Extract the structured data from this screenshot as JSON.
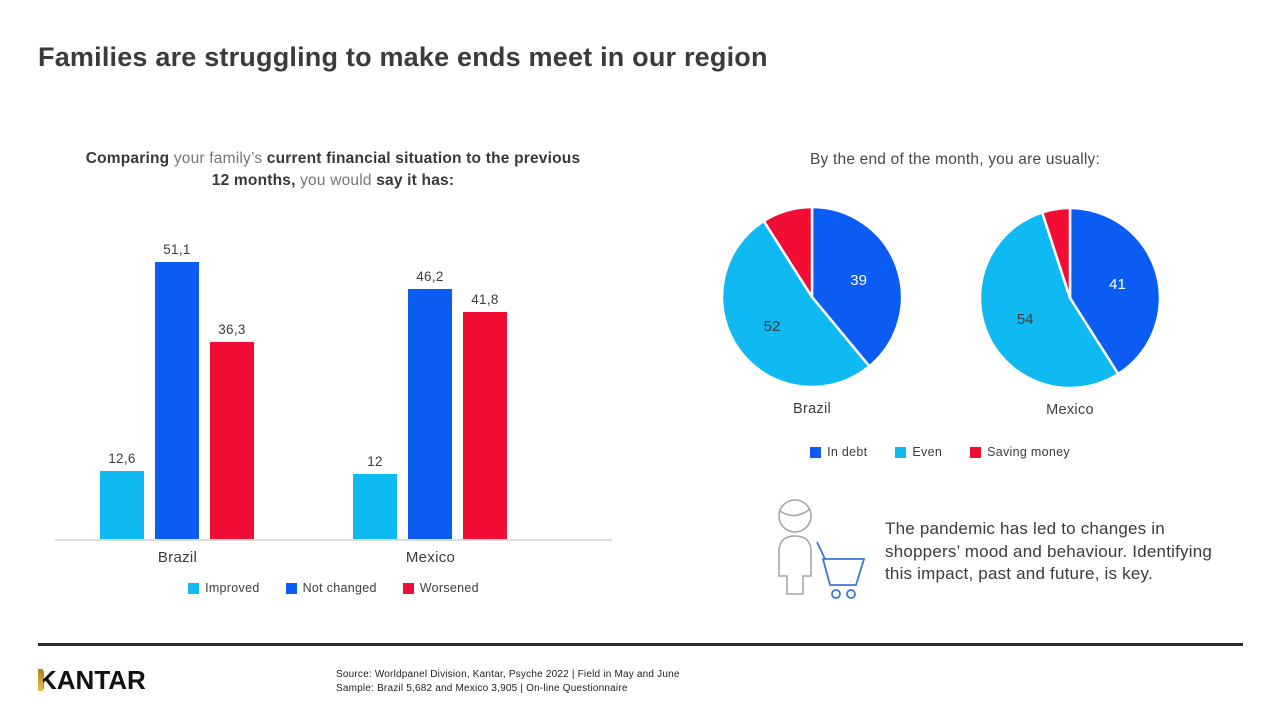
{
  "title": "Families are struggling to make ends meet in our region",
  "colors": {
    "cyan": "#0FB9F2",
    "blue": "#0B5CF2",
    "red": "#F20D35",
    "axis": "#DCDCDC",
    "text_dark": "#3C3C3C",
    "gold": "#C9A227"
  },
  "bar_section": {
    "title_segments": [
      {
        "text": "Comparing ",
        "em": true
      },
      {
        "text": "your family’s ",
        "em": false
      },
      {
        "text": "current financial situation to the previous 12 months, ",
        "em": true
      },
      {
        "text": "you would ",
        "em": false
      },
      {
        "text": "say it has:",
        "em": true
      }
    ],
    "legend": [
      {
        "label": "Improved",
        "color": "#0FB9F2"
      },
      {
        "label": "Not changed",
        "color": "#0B5CF2"
      },
      {
        "label": "Worsened",
        "color": "#F20D35"
      }
    ]
  },
  "pie_section": {
    "title": "By the end of the month, you are usually:",
    "legend": [
      {
        "label": "In debt",
        "color": "#0B5CF2"
      },
      {
        "label": "Even",
        "color": "#0FB9F2"
      },
      {
        "label": "Saving money",
        "color": "#F20D35"
      }
    ]
  },
  "insight": {
    "text": "The pandemic has led to changes in shoppers’ mood and behaviour. Identifying this impact, past and future, is key.",
    "icons": [
      "shopper-person-icon",
      "shopping-basket-icon"
    ]
  },
  "footer": {
    "logo": "KANTAR",
    "source_line1": "Source: Worldpanel Division, Kantar, Psyche 2022 | Field in May and June",
    "source_line2": "Sample: Brazil 5,682 and Mexico 3,905 | On-line Questionnaire"
  },
  "chart_data": [
    {
      "type": "bar",
      "title": "Comparing your family’s current financial situation to the previous 12 months, you would say it has:",
      "categories": [
        "Brazil",
        "Mexico"
      ],
      "series": [
        {
          "name": "Improved",
          "color": "#0FB9F2",
          "values": [
            12.6,
            12
          ],
          "labels": [
            "12,6",
            "12"
          ]
        },
        {
          "name": "Not changed",
          "color": "#0B5CF2",
          "values": [
            51.1,
            46.2
          ],
          "labels": [
            "51,1",
            "46,2"
          ]
        },
        {
          "name": "Worsened",
          "color": "#F20D35",
          "values": [
            36.3,
            41.8
          ],
          "labels": [
            "36,3",
            "41,8"
          ]
        }
      ],
      "ylim": [
        0,
        55
      ],
      "grid": false,
      "legend_position": "bottom"
    },
    {
      "type": "pie",
      "title": "Brazil",
      "slices": [
        {
          "name": "In debt",
          "value": 39,
          "label": "39",
          "color": "#0B5CF2",
          "label_color": "#FFFFFF"
        },
        {
          "name": "Even",
          "value": 52,
          "label": "52",
          "color": "#0FB9F2",
          "label_color": "#3C3C3C"
        },
        {
          "name": "Saving money",
          "value": 9,
          "label": "",
          "color": "#F20D35",
          "label_color": "#FFFFFF"
        }
      ],
      "start_angle_deg": 0,
      "direction": "clockwise"
    },
    {
      "type": "pie",
      "title": "Mexico",
      "slices": [
        {
          "name": "In debt",
          "value": 41,
          "label": "41",
          "color": "#0B5CF2",
          "label_color": "#FFFFFF"
        },
        {
          "name": "Even",
          "value": 54,
          "label": "54",
          "color": "#0FB9F2",
          "label_color": "#3C3C3C"
        },
        {
          "name": "Saving money",
          "value": 5,
          "label": "",
          "color": "#F20D35",
          "label_color": "#FFFFFF"
        }
      ],
      "start_angle_deg": 0,
      "direction": "clockwise"
    }
  ]
}
